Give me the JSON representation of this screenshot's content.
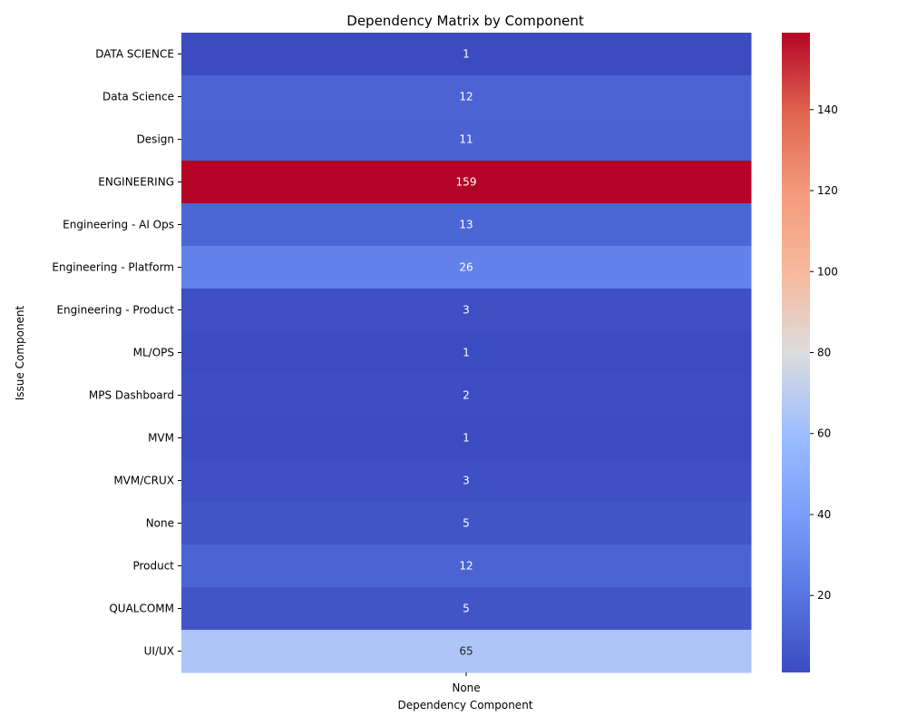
{
  "chart_data": {
    "type": "heatmap",
    "title": "Dependency Matrix by Component",
    "xlabel": "Dependency Component",
    "ylabel": "Issue Component",
    "columns": [
      "None"
    ],
    "rows": [
      "DATA SCIENCE",
      "Data Science",
      "Design",
      "ENGINEERING",
      "Engineering - AI Ops",
      "Engineering - Platform",
      "Engineering - Product",
      "ML/OPS",
      "MPS Dashboard",
      "MVM",
      "MVM/CRUX",
      "None",
      "Product",
      "QUALCOMM",
      "UI/UX"
    ],
    "values": [
      [
        1
      ],
      [
        12
      ],
      [
        11
      ],
      [
        159
      ],
      [
        13
      ],
      [
        26
      ],
      [
        3
      ],
      [
        1
      ],
      [
        2
      ],
      [
        1
      ],
      [
        3
      ],
      [
        5
      ],
      [
        12
      ],
      [
        5
      ],
      [
        65
      ]
    ],
    "colorbar": {
      "colormap": "coolwarm",
      "vmin": 1,
      "vmax": 159,
      "ticks": [
        20,
        40,
        60,
        80,
        100,
        120,
        140
      ]
    },
    "grid": false,
    "legend": "colorbar-right"
  }
}
